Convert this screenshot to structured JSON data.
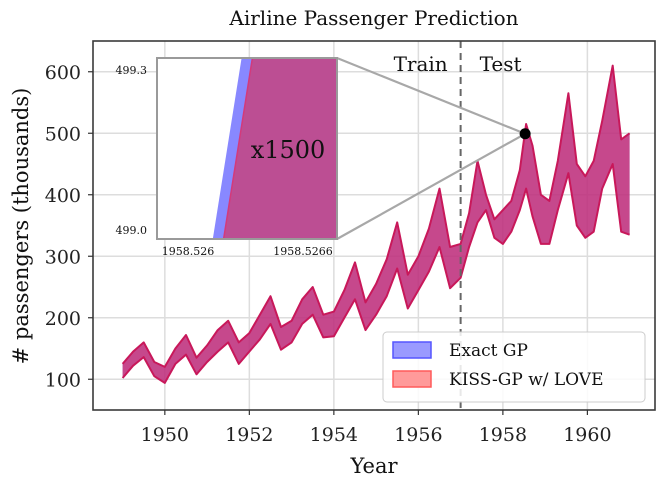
{
  "chart_data": {
    "type": "area",
    "title": "Airline Passenger Prediction",
    "xlabel": "Year",
    "ylabel": "# passengers (thousands)",
    "xlim": [
      1948.3,
      1961.6
    ],
    "ylim": [
      50,
      650
    ],
    "xticks": [
      1950,
      1952,
      1954,
      1956,
      1958,
      1960
    ],
    "yticks": [
      100,
      200,
      300,
      400,
      500,
      600
    ],
    "grid": true,
    "split_year": 1957.0,
    "regions": {
      "train_label": "Train",
      "test_label": "Test"
    },
    "highlight_point": {
      "x": 1958.5266,
      "y": 499.15
    },
    "inset": {
      "xlim": [
        1958.5258,
        1958.5268
      ],
      "ylim": [
        499.0,
        499.3
      ],
      "x_tick_labels": [
        "1958.526",
        "1958.5266"
      ],
      "y_tick_labels": [
        "499.3",
        "499.0"
      ],
      "zoom_label": "x1500",
      "exact_edge": [
        [
          1958.52611,
          499.0
        ],
        [
          1958.52627,
          499.3
        ]
      ],
      "kiss_edge": [
        [
          1958.52617,
          499.0
        ],
        [
          1958.52633,
          499.3
        ]
      ]
    },
    "legend": {
      "placement": "bottom-right",
      "entries": [
        "Exact GP",
        "KISS-GP w/ LOVE"
      ]
    },
    "series": [
      {
        "name": "Exact GP",
        "color": "#5555ff",
        "train_x": [
          1949.0,
          1949.25,
          1949.5,
          1949.75,
          1950.0,
          1950.25,
          1950.5,
          1950.75,
          1951.0,
          1951.25,
          1951.5,
          1951.75,
          1952.0,
          1952.25,
          1952.5,
          1952.75,
          1953.0,
          1953.25,
          1953.5,
          1953.75,
          1954.0,
          1954.25,
          1954.5,
          1954.75,
          1955.0,
          1955.25,
          1955.5,
          1955.75,
          1956.0,
          1956.25,
          1956.5,
          1956.75,
          1957.0
        ],
        "train_lower": [
          102,
          122,
          136,
          105,
          94,
          125,
          140,
          108,
          128,
          145,
          160,
          125,
          145,
          165,
          190,
          148,
          160,
          190,
          205,
          168,
          170,
          200,
          230,
          180,
          205,
          235,
          280,
          215,
          245,
          275,
          315,
          248,
          265
        ],
        "train_upper": [
          125,
          145,
          160,
          128,
          120,
          150,
          172,
          135,
          155,
          180,
          195,
          160,
          175,
          205,
          235,
          185,
          195,
          230,
          250,
          205,
          210,
          245,
          290,
          225,
          255,
          295,
          355,
          270,
          300,
          345,
          410,
          315,
          320
        ],
        "test_x": [
          1957.0,
          1957.2,
          1957.4,
          1957.6,
          1957.8,
          1958.0,
          1958.2,
          1958.4,
          1958.55,
          1958.7,
          1958.9,
          1959.1,
          1959.3,
          1959.55,
          1959.75,
          1959.95,
          1960.15,
          1960.35,
          1960.6,
          1960.8,
          1961.0
        ],
        "test_lower": [
          300,
          315,
          355,
          375,
          330,
          320,
          340,
          375,
          410,
          365,
          320,
          320,
          375,
          435,
          350,
          330,
          340,
          410,
          450,
          340,
          335
        ],
        "test_upper": [
          330,
          370,
          455,
          400,
          360,
          375,
          390,
          440,
          515,
          480,
          400,
          390,
          455,
          565,
          450,
          430,
          455,
          520,
          610,
          490,
          500
        ]
      },
      {
        "name": "KISS-GP w/ LOVE",
        "color": "#ff5555"
      }
    ]
  }
}
